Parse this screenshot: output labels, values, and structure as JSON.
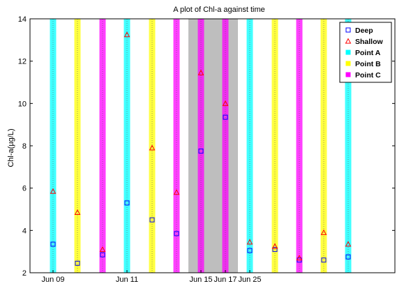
{
  "chart_data": {
    "type": "scatter",
    "title": "A plot of Chl-a against time",
    "xlabel": "",
    "ylabel": "Chl-a(µg/L)",
    "ylim": [
      2,
      14
    ],
    "yticks": [
      2,
      4,
      6,
      8,
      10,
      12,
      14
    ],
    "grid": "vertical dotted lines at each sampling station",
    "legend_position": "top-right",
    "xticks": [
      "Jun 09",
      "Jun 11",
      "Jun 15",
      "Jun 17",
      "Jun 25"
    ],
    "stations": [
      {
        "point": "Point A",
        "deep": 3.35,
        "shallow": 5.85
      },
      {
        "point": "Point B",
        "deep": 2.45,
        "shallow": 4.85
      },
      {
        "point": "Point C",
        "deep": 2.85,
        "shallow": 3.1
      },
      {
        "point": "Point A",
        "deep": 5.3,
        "shallow": 13.25
      },
      {
        "point": "Point B",
        "deep": 4.5,
        "shallow": 7.9
      },
      {
        "point": "Point C",
        "deep": 3.85,
        "shallow": 5.8
      },
      {
        "point": "Point C",
        "deep": 7.75,
        "shallow": 11.45
      },
      {
        "point": "Point C",
        "deep": 9.35,
        "shallow": 10.0
      },
      {
        "point": "Point A",
        "deep": 3.05,
        "shallow": 3.45
      },
      {
        "point": "Point B",
        "deep": 3.1,
        "shallow": 3.25
      },
      {
        "point": "Point C",
        "deep": 2.6,
        "shallow": 2.7
      },
      {
        "point": "Point B",
        "deep": 2.6,
        "shallow": 3.9
      },
      {
        "point": "Point A",
        "deep": 2.75,
        "shallow": 3.35
      }
    ],
    "shaded_period": "Jun 15 – Jun 17",
    "series": [
      {
        "name": "Deep",
        "marker": "square",
        "color": "#0000ff"
      },
      {
        "name": "Shallow",
        "marker": "triangle",
        "color": "#ff0000"
      }
    ],
    "points": [
      {
        "name": "Point A",
        "color": "#00ffff"
      },
      {
        "name": "Point B",
        "color": "#ffff00"
      },
      {
        "name": "Point C",
        "color": "#ff00ff"
      }
    ],
    "shade_color": "#bebebe"
  }
}
